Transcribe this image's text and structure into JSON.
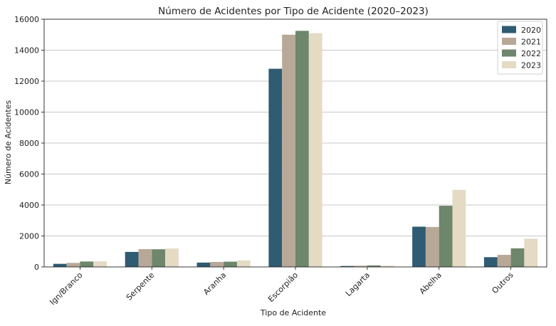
{
  "chart_data": {
    "type": "bar",
    "title": "Número de Acidentes por Tipo de Acidente (2020–2023)",
    "xlabel": "Tipo de Acidente",
    "ylabel": "Número de Acidentes",
    "ylim": [
      0,
      16000
    ],
    "yticks": [
      0,
      2000,
      4000,
      6000,
      8000,
      10000,
      12000,
      14000,
      16000
    ],
    "grid": "horizontal",
    "legend_position": "top-right",
    "categories": [
      "Ign/Branco",
      "Serpente",
      "Aranha",
      "Escorpião",
      "Lagarta",
      "Abelha",
      "Outros"
    ],
    "series": [
      {
        "name": "2020",
        "color": "#2f5b73",
        "values": [
          200,
          970,
          280,
          12800,
          60,
          2600,
          630
        ]
      },
      {
        "name": "2021",
        "color": "#b8a898",
        "values": [
          260,
          1150,
          320,
          15000,
          80,
          2580,
          780
        ]
      },
      {
        "name": "2022",
        "color": "#6e866b",
        "values": [
          350,
          1140,
          340,
          15250,
          100,
          3950,
          1200
        ]
      },
      {
        "name": "2023",
        "color": "#e5dac4",
        "values": [
          360,
          1190,
          420,
          15100,
          80,
          4980,
          1820
        ]
      }
    ]
  }
}
